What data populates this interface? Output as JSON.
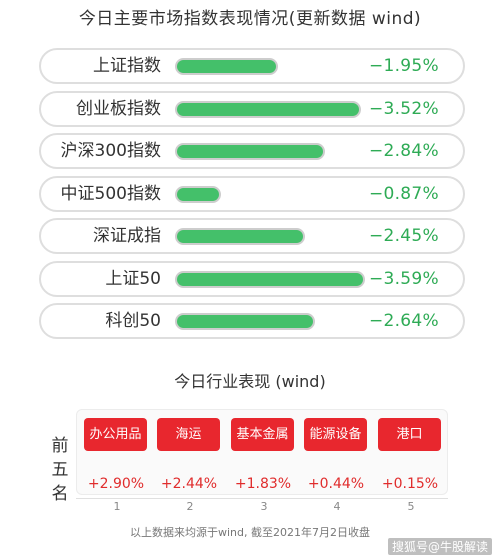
{
  "title": "今日主要市场指数表现情况(更新数据 wind)",
  "indices": [
    {
      "name": "上证指数",
      "value": "−1.95%",
      "magnitude": 1.95
    },
    {
      "name": "创业板指数",
      "value": "−3.52%",
      "magnitude": 3.52
    },
    {
      "name": "沪深300指数",
      "value": "−2.84%",
      "magnitude": 2.84
    },
    {
      "name": "中证500指数",
      "value": "−0.87%",
      "magnitude": 0.87
    },
    {
      "name": "深证成指",
      "value": "−2.45%",
      "magnitude": 2.45
    },
    {
      "name": "上证50",
      "value": "−3.59%",
      "magnitude": 3.59
    },
    {
      "name": "科创50",
      "value": "−2.64%",
      "magnitude": 2.64
    }
  ],
  "industry_title": "今日行业表现 (wind)",
  "side_label": [
    "前",
    "五",
    "名"
  ],
  "sectors": [
    {
      "name": "办公用品",
      "pct": "+2.90%",
      "rank": "1"
    },
    {
      "name": "海运",
      "pct": "+2.44%",
      "rank": "2"
    },
    {
      "name": "基本金属",
      "pct": "+1.83%",
      "rank": "3"
    },
    {
      "name": "能源设备",
      "pct": "+0.44%",
      "rank": "4"
    },
    {
      "name": "港口",
      "pct": "+0.15%",
      "rank": "5"
    }
  ],
  "footnote": "以上数据来均源于wind, 截至2021年7月2日收盘",
  "watermark": "搜狐号@牛股解读",
  "colors": {
    "bar": "#44c06a",
    "negative": "#2eab55",
    "sector": "#e8272e",
    "positive": "#e02c2c"
  }
}
